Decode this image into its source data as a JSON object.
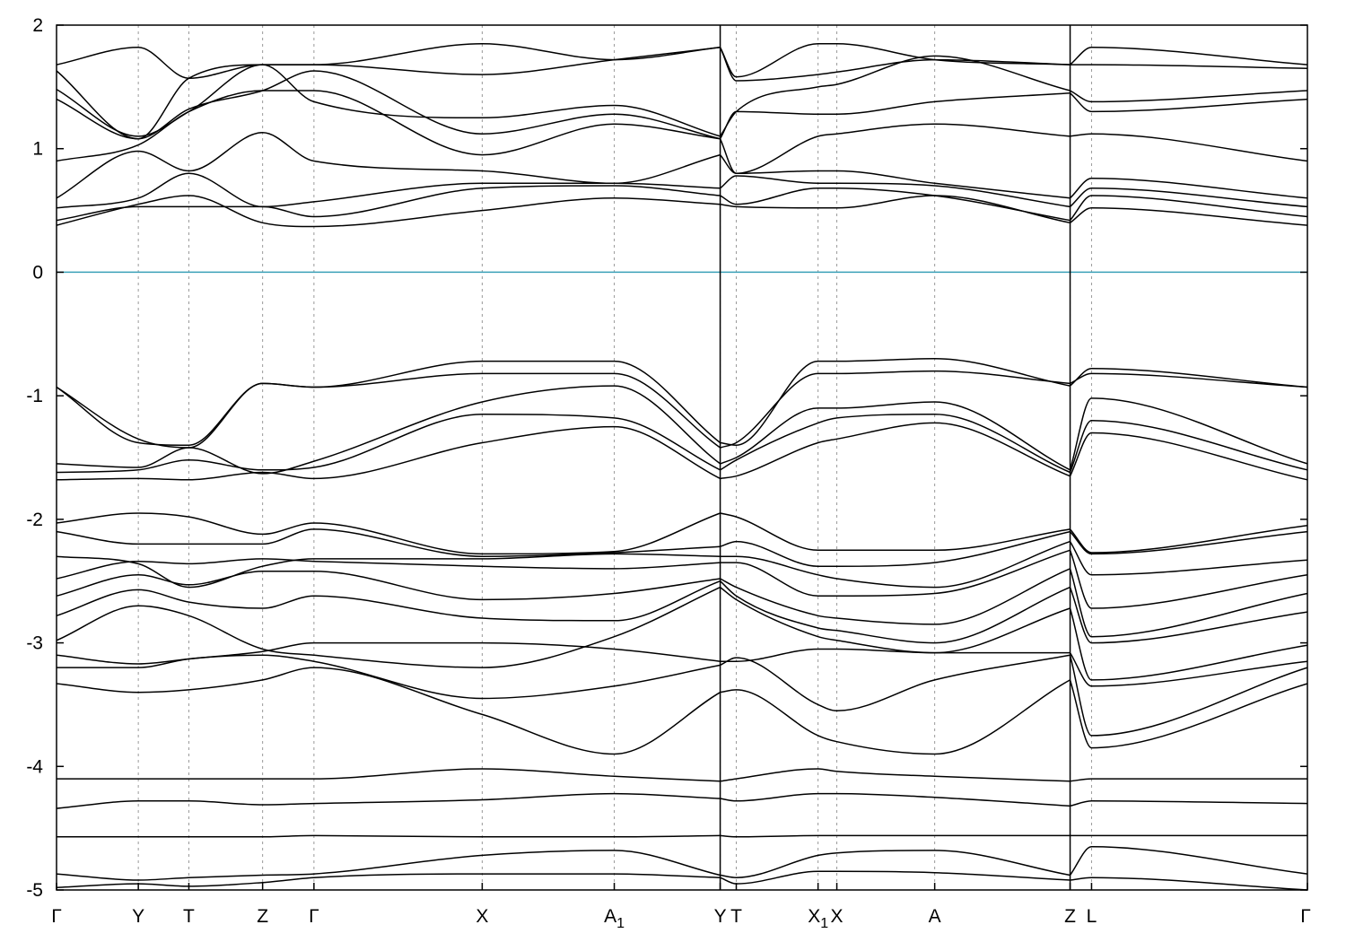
{
  "chart_data": {
    "type": "line",
    "title": "",
    "xlabel": "",
    "ylabel": "",
    "ylim": [
      -5,
      2
    ],
    "y_ticks": [
      2,
      1,
      0,
      -1,
      -2,
      -3,
      -4,
      -5
    ],
    "y_tick_labels": [
      "2",
      "1",
      "0",
      "-1",
      "-2",
      "-3",
      "-4",
      "-5"
    ],
    "x_ticks": [
      0,
      0.61,
      0.987,
      1.537,
      1.92,
      3.175,
      4.16,
      4.95,
      5.07,
      5.68,
      5.82,
      6.55,
      7.56,
      7.72,
      9.33
    ],
    "x_tick_labels": [
      {
        "main": "Γ",
        "sub": ""
      },
      {
        "main": "Y",
        "sub": ""
      },
      {
        "main": "T",
        "sub": ""
      },
      {
        "main": "Z",
        "sub": ""
      },
      {
        "main": "Γ",
        "sub": ""
      },
      {
        "main": "X",
        "sub": ""
      },
      {
        "main": "A",
        "sub": "1"
      },
      {
        "main": "Y",
        "sub": ""
      },
      {
        "main": "T",
        "sub": ""
      },
      {
        "main": "X",
        "sub": "1"
      },
      {
        "main": "X",
        "sub": ""
      },
      {
        "main": "A",
        "sub": ""
      },
      {
        "main": "Z",
        "sub": ""
      },
      {
        "main": "L",
        "sub": ""
      },
      {
        "main": "Γ",
        "sub": ""
      }
    ],
    "xlim": [
      0,
      9.33
    ],
    "path_breaks": [
      4.95,
      7.56
    ],
    "fermi_level": 0,
    "grid": "vertical dashed lines at high-symmetry points",
    "colors": {
      "bands": "#000000",
      "fermi": "#3aa0b8",
      "grid": "#999999"
    },
    "segments": [
      {
        "from": 0,
        "to": 4.95,
        "x": [
          0,
          0.61,
          0.987,
          1.537,
          1.92,
          3.175,
          4.16,
          4.95
        ],
        "bands": [
          [
            -4.98,
            -4.95,
            -4.97,
            -4.94,
            -4.9,
            -4.87,
            -4.87,
            -4.9
          ],
          [
            -4.87,
            -4.92,
            -4.9,
            -4.88,
            -4.87,
            -4.72,
            -4.68,
            -4.88
          ],
          [
            -4.57,
            -4.57,
            -4.57,
            -4.57,
            -4.56,
            -4.57,
            -4.57,
            -4.56
          ],
          [
            -4.34,
            -4.28,
            -4.28,
            -4.31,
            -4.3,
            -4.27,
            -4.22,
            -4.26
          ],
          [
            -4.1,
            -4.1,
            -4.1,
            -4.1,
            -4.1,
            -4.02,
            -4.08,
            -4.12
          ],
          [
            -3.33,
            -3.4,
            -3.38,
            -3.3,
            -3.2,
            -3.58,
            -3.9,
            -3.4
          ],
          [
            -3.2,
            -3.2,
            -3.13,
            -3.1,
            -3.15,
            -3.45,
            -3.35,
            -3.18
          ],
          [
            -3.1,
            -3.17,
            -3.13,
            -3.07,
            -3.0,
            -3.0,
            -3.05,
            -3.15
          ],
          [
            -2.98,
            -2.7,
            -2.78,
            -3.05,
            -3.1,
            -3.2,
            -2.95,
            -2.55
          ],
          [
            -2.78,
            -2.57,
            -2.67,
            -2.72,
            -2.62,
            -2.8,
            -2.82,
            -2.5
          ],
          [
            -2.62,
            -2.45,
            -2.53,
            -2.42,
            -2.42,
            -2.65,
            -2.6,
            -2.48
          ],
          [
            -2.48,
            -2.34,
            -2.36,
            -2.32,
            -2.34,
            -2.38,
            -2.4,
            -2.35
          ],
          [
            -2.3,
            -2.36,
            -2.55,
            -2.38,
            -2.32,
            -2.32,
            -2.28,
            -2.3
          ],
          [
            -2.1,
            -2.2,
            -2.2,
            -2.2,
            -2.08,
            -2.3,
            -2.27,
            -2.22
          ],
          [
            -2.03,
            -1.95,
            -1.98,
            -2.12,
            -2.03,
            -2.28,
            -2.26,
            -1.95
          ],
          [
            -1.68,
            -1.67,
            -1.68,
            -1.62,
            -1.67,
            -1.38,
            -1.25,
            -1.67
          ],
          [
            -1.62,
            -1.6,
            -1.52,
            -1.6,
            -1.58,
            -1.15,
            -1.18,
            -1.6
          ],
          [
            -1.55,
            -1.58,
            -1.42,
            -1.63,
            -1.53,
            -1.05,
            -0.92,
            -1.55
          ],
          [
            -0.93,
            -1.38,
            -1.4,
            -0.9,
            -0.93,
            -0.82,
            -0.82,
            -1.42
          ],
          [
            -0.93,
            -1.35,
            -1.42,
            -0.9,
            -0.93,
            -0.72,
            -0.72,
            -1.38
          ],
          [
            0.38,
            0.55,
            0.62,
            0.4,
            0.37,
            0.5,
            0.6,
            0.55
          ],
          [
            0.42,
            0.53,
            0.53,
            0.53,
            0.45,
            0.68,
            0.7,
            0.62
          ],
          [
            0.52,
            0.6,
            0.8,
            0.53,
            0.57,
            0.72,
            0.72,
            0.68
          ],
          [
            0.6,
            0.98,
            0.82,
            1.13,
            0.9,
            0.82,
            0.72,
            0.95
          ],
          [
            0.9,
            1.03,
            1.3,
            1.47,
            1.47,
            0.95,
            1.2,
            1.08
          ],
          [
            1.4,
            1.08,
            1.32,
            1.47,
            1.63,
            1.12,
            1.28,
            1.08
          ],
          [
            1.48,
            1.1,
            1.3,
            1.68,
            1.38,
            1.25,
            1.35,
            1.1
          ],
          [
            1.63,
            1.08,
            1.57,
            1.68,
            1.68,
            1.6,
            1.72,
            1.82
          ],
          [
            1.68,
            1.82,
            1.57,
            1.68,
            1.68,
            1.85,
            1.72,
            1.82
          ]
        ]
      },
      {
        "from": 4.95,
        "to": 7.56,
        "x": [
          4.95,
          5.07,
          5.68,
          5.82,
          6.55,
          7.56
        ],
        "bands": [
          [
            -4.9,
            -4.95,
            -4.85,
            -4.85,
            -4.86,
            -4.92
          ],
          [
            -4.88,
            -4.9,
            -4.72,
            -4.7,
            -4.68,
            -4.88
          ],
          [
            -4.56,
            -4.57,
            -4.56,
            -4.56,
            -4.56,
            -4.56
          ],
          [
            -4.26,
            -4.28,
            -4.22,
            -4.22,
            -4.25,
            -4.32
          ],
          [
            -4.12,
            -4.1,
            -4.02,
            -4.04,
            -4.08,
            -4.12
          ],
          [
            -3.4,
            -3.38,
            -3.75,
            -3.8,
            -3.9,
            -3.3
          ],
          [
            -3.18,
            -3.12,
            -3.5,
            -3.55,
            -3.3,
            -3.1
          ],
          [
            -3.15,
            -3.15,
            -3.05,
            -3.05,
            -3.08,
            -3.08
          ],
          [
            -2.55,
            -2.65,
            -2.95,
            -2.98,
            -3.08,
            -2.72
          ],
          [
            -2.5,
            -2.62,
            -2.88,
            -2.9,
            -3.0,
            -2.55
          ],
          [
            -2.48,
            -2.55,
            -2.78,
            -2.8,
            -2.85,
            -2.4
          ],
          [
            -2.35,
            -2.35,
            -2.62,
            -2.62,
            -2.6,
            -2.25
          ],
          [
            -2.3,
            -2.3,
            -2.45,
            -2.48,
            -2.55,
            -2.18
          ],
          [
            -2.22,
            -2.18,
            -2.38,
            -2.38,
            -2.35,
            -2.1
          ],
          [
            -1.95,
            -1.98,
            -2.25,
            -2.25,
            -2.25,
            -2.08
          ],
          [
            -1.67,
            -1.65,
            -1.38,
            -1.35,
            -1.22,
            -1.65
          ],
          [
            -1.6,
            -1.52,
            -1.22,
            -1.18,
            -1.15,
            -1.62
          ],
          [
            -1.55,
            -1.5,
            -1.1,
            -1.1,
            -1.05,
            -1.6
          ],
          [
            -1.42,
            -1.38,
            -0.82,
            -0.82,
            -0.8,
            -0.9
          ],
          [
            -1.38,
            -1.4,
            -0.72,
            -0.72,
            -0.7,
            -0.92
          ],
          [
            0.55,
            0.53,
            0.52,
            0.52,
            0.62,
            0.4
          ],
          [
            0.62,
            0.55,
            0.68,
            0.68,
            0.62,
            0.42
          ],
          [
            0.68,
            0.78,
            0.72,
            0.72,
            0.7,
            0.53
          ],
          [
            0.95,
            0.8,
            0.82,
            0.82,
            0.72,
            0.6
          ],
          [
            1.08,
            0.8,
            1.1,
            1.12,
            1.2,
            1.1
          ],
          [
            1.08,
            1.3,
            1.28,
            1.28,
            1.38,
            1.45
          ],
          [
            1.1,
            1.3,
            1.5,
            1.52,
            1.75,
            1.47
          ],
          [
            1.82,
            1.55,
            1.6,
            1.62,
            1.72,
            1.68
          ],
          [
            1.82,
            1.58,
            1.85,
            1.85,
            1.72,
            1.68
          ]
        ]
      },
      {
        "from": 7.56,
        "to": 9.33,
        "x": [
          7.56,
          7.72,
          9.33
        ],
        "bands": [
          [
            -4.92,
            -4.9,
            -5.0
          ],
          [
            -4.88,
            -4.65,
            -4.87
          ],
          [
            -4.56,
            -4.56,
            -4.56
          ],
          [
            -4.32,
            -4.28,
            -4.3
          ],
          [
            -4.12,
            -4.1,
            -4.1
          ],
          [
            -3.3,
            -3.85,
            -3.33
          ],
          [
            -3.1,
            -3.75,
            -3.2
          ],
          [
            -3.08,
            -3.35,
            -3.15
          ],
          [
            -2.72,
            -3.3,
            -3.02
          ],
          [
            -2.55,
            -3.0,
            -2.75
          ],
          [
            -2.4,
            -2.95,
            -2.6
          ],
          [
            -2.25,
            -2.72,
            -2.45
          ],
          [
            -2.18,
            -2.45,
            -2.33
          ],
          [
            -2.1,
            -2.28,
            -2.1
          ],
          [
            -2.08,
            -2.27,
            -2.05
          ],
          [
            -1.65,
            -1.3,
            -1.68
          ],
          [
            -1.62,
            -1.2,
            -1.6
          ],
          [
            -1.6,
            -1.02,
            -1.55
          ],
          [
            -0.9,
            -0.82,
            -0.93
          ],
          [
            -0.92,
            -0.78,
            -0.93
          ],
          [
            0.4,
            0.52,
            0.38
          ],
          [
            0.42,
            0.62,
            0.45
          ],
          [
            0.53,
            0.68,
            0.53
          ],
          [
            0.6,
            0.76,
            0.6
          ],
          [
            1.1,
            1.12,
            0.9
          ],
          [
            1.45,
            1.3,
            1.4
          ],
          [
            1.47,
            1.38,
            1.47
          ],
          [
            1.68,
            1.68,
            1.65
          ],
          [
            1.68,
            1.82,
            1.68
          ]
        ]
      }
    ]
  }
}
